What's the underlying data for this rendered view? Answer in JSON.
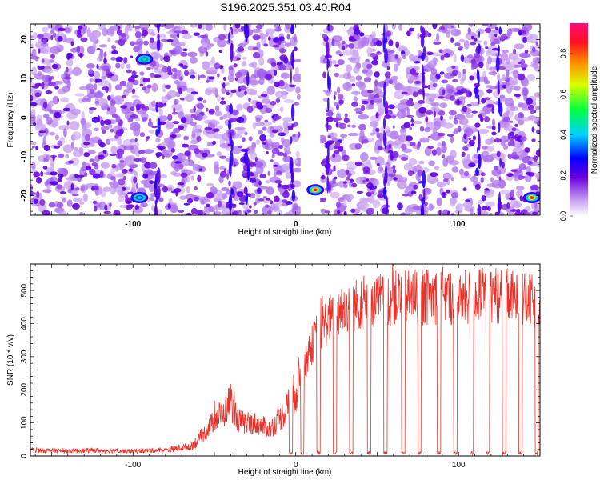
{
  "title": "S196.2025.351.03.40.R04",
  "chart_data": [
    {
      "type": "heatmap",
      "xlabel": "Height of straight line (km)",
      "ylabel": "Frequency (Hz)",
      "xlim": [
        -163,
        150
      ],
      "ylim": [
        -25,
        24
      ],
      "xticks": [
        -100,
        0,
        100
      ],
      "xtick_labels": [
        "-100",
        "0",
        "100"
      ],
      "yticks": [
        -20,
        -10,
        0,
        10,
        20
      ],
      "ytick_labels": [
        "-20",
        "-10",
        "0",
        "10",
        "20"
      ],
      "colorbar": {
        "label": "Normalized spectral amplitude",
        "range": [
          0,
          0.95
        ],
        "ticks": [
          0.0,
          0.2,
          0.4,
          0.6,
          0.8
        ],
        "tick_labels": [
          "0.0",
          "0.2",
          "0.4",
          "0.6",
          "0.8"
        ]
      },
      "blank_band_km": [
        3,
        15
      ],
      "hotspots": [
        {
          "x": -93,
          "y": 15,
          "value": 0.5
        },
        {
          "x": -96,
          "y": -20.5,
          "value": 0.45
        },
        {
          "x": 12,
          "y": -18.5,
          "value": 0.95
        },
        {
          "x": 145,
          "y": -20.5,
          "value": 0.9
        }
      ]
    },
    {
      "type": "line",
      "xlabel": "Height of straight line (km)",
      "ylabel": "SNR (10 * v/v)",
      "xlim": [
        -163,
        150
      ],
      "ylim": [
        0,
        580
      ],
      "xticks": [
        -100,
        0,
        100
      ],
      "xtick_labels": [
        "-100",
        "0",
        "100"
      ],
      "yticks": [
        0,
        100,
        200,
        300,
        400,
        500
      ],
      "ytick_labels": [
        "0",
        "100",
        "200",
        "300",
        "400",
        "500"
      ],
      "color": "#e8322a",
      "series": [
        {
          "name": "SNR",
          "x": [
            -163,
            -140,
            -120,
            -100,
            -80,
            -66,
            -60,
            -52,
            -48,
            -44,
            -40,
            -36,
            -30,
            -26,
            -20,
            -16,
            -10,
            -6,
            -2,
            0,
            4,
            8,
            12,
            16,
            20,
            24,
            28,
            32,
            36,
            40,
            50,
            60,
            70,
            80,
            90,
            100,
            110,
            120,
            130,
            140,
            150
          ],
          "y": [
            18,
            15,
            17,
            15,
            18,
            28,
            45,
            95,
            120,
            130,
            170,
            110,
            95,
            100,
            90,
            80,
            110,
            140,
            175,
            200,
            250,
            310,
            360,
            390,
            410,
            430,
            440,
            450,
            455,
            460,
            470,
            475,
            480,
            480,
            485,
            475,
            480,
            490,
            480,
            470,
            460
          ]
        }
      ],
      "dropouts_km": [
        -3,
        4,
        14,
        24,
        34,
        45,
        55,
        66,
        76,
        88,
        98,
        108,
        118,
        128,
        138,
        148
      ]
    }
  ]
}
